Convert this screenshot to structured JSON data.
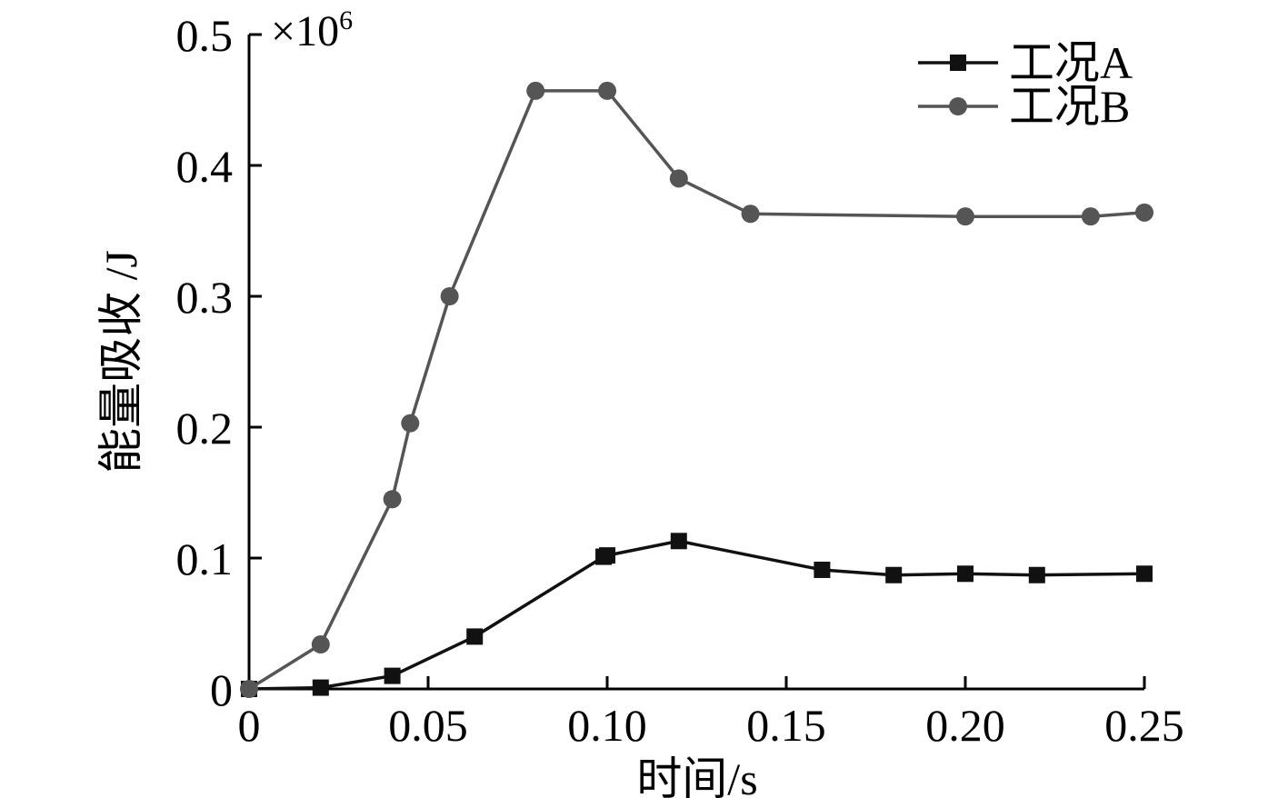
{
  "chart_data": {
    "type": "line",
    "xlabel": "时间/s",
    "ylabel": "能量吸收 /J",
    "y_multiplier": "×10",
    "y_multiplier_exponent": "6",
    "xlim": [
      0,
      0.25
    ],
    "ylim": [
      0,
      0.5
    ],
    "x_ticks": [
      0,
      0.05,
      0.1,
      0.15,
      0.2,
      0.25
    ],
    "x_tick_labels": [
      "0",
      "0.05",
      "0.10",
      "0.15",
      "0.20",
      "0.25"
    ],
    "y_ticks": [
      0,
      0.1,
      0.2,
      0.3,
      0.4,
      0.5
    ],
    "y_tick_labels": [
      "0",
      "0.1",
      "0.2",
      "0.3",
      "0.4",
      "0.5"
    ],
    "grid": false,
    "legend_position": "top-right",
    "series": [
      {
        "name": "工况A",
        "color": "#111111",
        "marker": "square",
        "x": [
          0,
          0.02,
          0.04,
          0.063,
          0.099,
          0.1,
          0.12,
          0.16,
          0.18,
          0.2,
          0.22,
          0.25
        ],
        "y": [
          0,
          0.001,
          0.01,
          0.04,
          0.101,
          0.102,
          0.113,
          0.091,
          0.087,
          0.088,
          0.087,
          0.088
        ]
      },
      {
        "name": "工况B",
        "color": "#555555",
        "marker": "circle",
        "x": [
          0,
          0.02,
          0.04,
          0.045,
          0.056,
          0.08,
          0.1,
          0.12,
          0.14,
          0.2,
          0.235,
          0.25
        ],
        "y": [
          0,
          0.034,
          0.145,
          0.203,
          0.3,
          0.457,
          0.457,
          0.39,
          0.363,
          0.361,
          0.361,
          0.364
        ]
      }
    ]
  }
}
